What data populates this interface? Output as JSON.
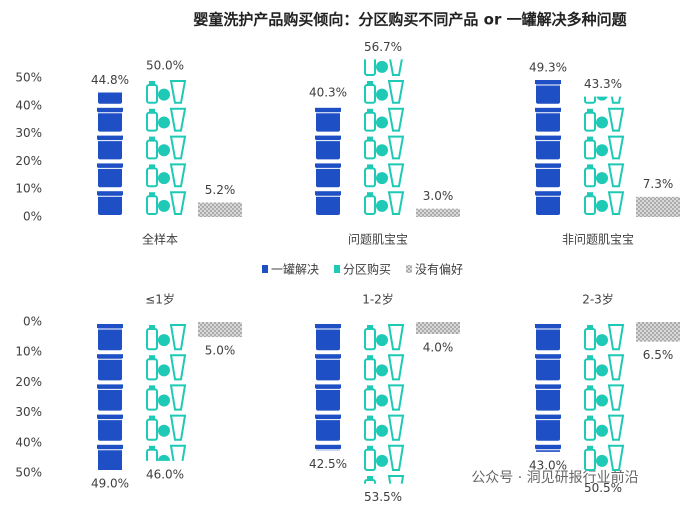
{
  "chart_data": [
    {
      "type": "pictogram-bar",
      "title": "婴童洗护产品购买倾向：分区购买不同产品 or 一罐解决多种问题",
      "categories": [
        "全样本",
        "问题肌宝宝",
        "非问题肌宝宝"
      ],
      "series": [
        {
          "name": "一罐解决",
          "color": "#1f4fc4",
          "values": [
            44.8,
            40.3,
            49.3
          ],
          "value_labels": [
            "44.8%",
            "40.3%",
            "49.3%"
          ]
        },
        {
          "name": "分区购买",
          "color": "#1ec9b5",
          "values": [
            50.0,
            56.7,
            43.3
          ],
          "value_labels": [
            "50.0%",
            "56.7%",
            "43.3%"
          ]
        },
        {
          "name": "没有偏好",
          "color": "#a6a6a6",
          "values": [
            5.2,
            3.0,
            7.3
          ],
          "value_labels": [
            "5.2%",
            "3.0%",
            "7.3%"
          ]
        }
      ],
      "ylim": [
        0,
        50
      ],
      "yticks": [
        {
          "value": 0,
          "label": "0%"
        },
        {
          "value": 10,
          "label": "10%"
        },
        {
          "value": 20,
          "label": "20%"
        },
        {
          "value": 30,
          "label": "30%"
        },
        {
          "value": 40,
          "label": "40%"
        },
        {
          "value": 50,
          "label": "50%"
        }
      ],
      "legend": "between"
    },
    {
      "type": "pictogram-bar",
      "inverted": true,
      "categories": [
        "≤1岁",
        "1-2岁",
        "2-3岁"
      ],
      "series": [
        {
          "values": [
            49.0,
            42.5,
            43.0
          ],
          "value_labels": [
            "49.0%",
            "42.5%",
            "43.0%"
          ]
        },
        {
          "values": [
            46.0,
            53.5,
            50.5
          ],
          "value_labels": [
            "46.0%",
            "53.5%",
            "50.5%"
          ]
        },
        {
          "values": [
            5.0,
            4.0,
            6.5
          ],
          "value_labels": [
            "5.0%",
            "4.0%",
            "6.5%"
          ]
        }
      ],
      "ylim": [
        0,
        50
      ],
      "yticks": [
        {
          "value": 0,
          "label": "0%"
        },
        {
          "value": 10,
          "label": "10%"
        },
        {
          "value": 20,
          "label": "20%"
        },
        {
          "value": 30,
          "label": "30%"
        },
        {
          "value": 40,
          "label": "40%"
        },
        {
          "value": 50,
          "label": "50%"
        }
      ]
    }
  ],
  "watermark": "公众号 · 洞见研报行业前沿"
}
